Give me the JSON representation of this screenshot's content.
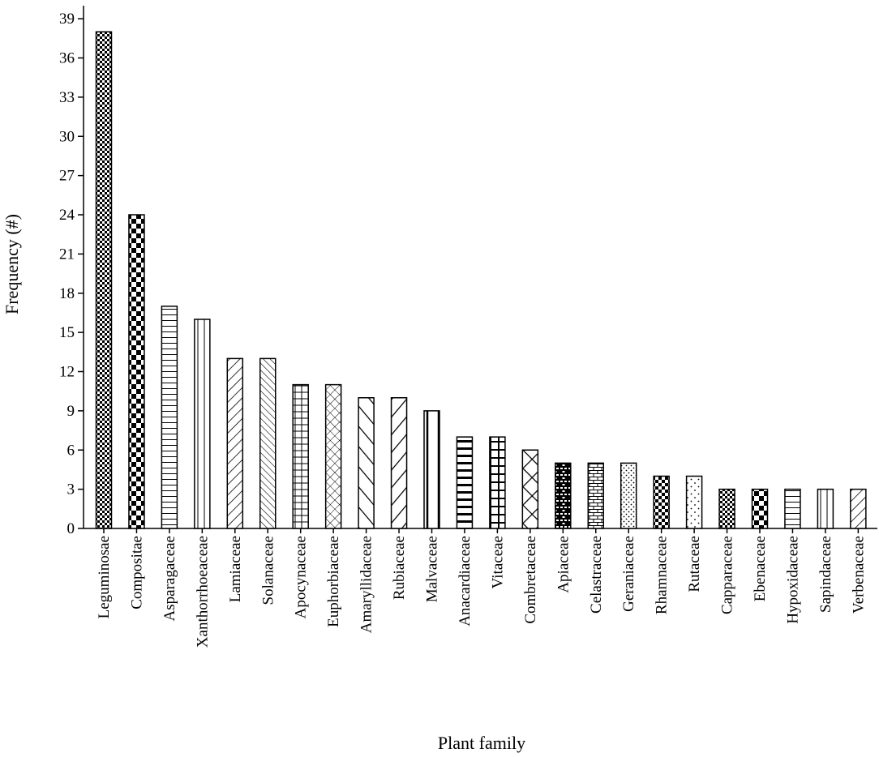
{
  "chart_data": {
    "type": "bar",
    "title": "",
    "xlabel": "Plant family",
    "ylabel": "Frequency (#)",
    "ylim": [
      0,
      40
    ],
    "yticks": [
      0,
      3,
      6,
      9,
      12,
      15,
      18,
      21,
      24,
      27,
      30,
      33,
      36,
      39
    ],
    "grid": false,
    "legend": "none",
    "categories": [
      "Leguminosae",
      "Compositae",
      "Asparagaceae",
      "Xanthorrhoeaceae",
      "Lamiaceae",
      "Solanaceae",
      "Apocynaceae",
      "Euphorbiaceae",
      "Amaryllidaceae",
      "Rubiaceae",
      "Malvaceae",
      "Anacardiaceae",
      "Vitaceae",
      "Combretaceae",
      "Apiaceae",
      "Celastraceae",
      "Geraniaceae",
      "Rhamnaceae",
      "Rutaceae",
      "Capparaceae",
      "Ebenaceae",
      "Hypoxidaceae",
      "Sapindaceae",
      "Verbenaceae"
    ],
    "values": [
      38,
      24,
      17,
      16,
      13,
      13,
      11,
      11,
      10,
      10,
      9,
      7,
      7,
      6,
      5,
      5,
      5,
      4,
      4,
      3,
      3,
      3,
      3,
      3
    ],
    "patterns": [
      "fine-checker",
      "checker",
      "horizontal-lines",
      "vertical-lines",
      "diagonal-down",
      "diagonal-down-dense",
      "grid",
      "diagonal-cross",
      "diagonal-up-wide",
      "diagonal-up",
      "vertical-thick",
      "horizontal-thick",
      "grid-thick",
      "diagonal-cross-wide",
      "brick-dark",
      "brick",
      "dots",
      "small-checker",
      "sparse-dots",
      "fine-checker",
      "checker",
      "horizontal-lines",
      "vertical-lines",
      "diagonal-down"
    ]
  }
}
